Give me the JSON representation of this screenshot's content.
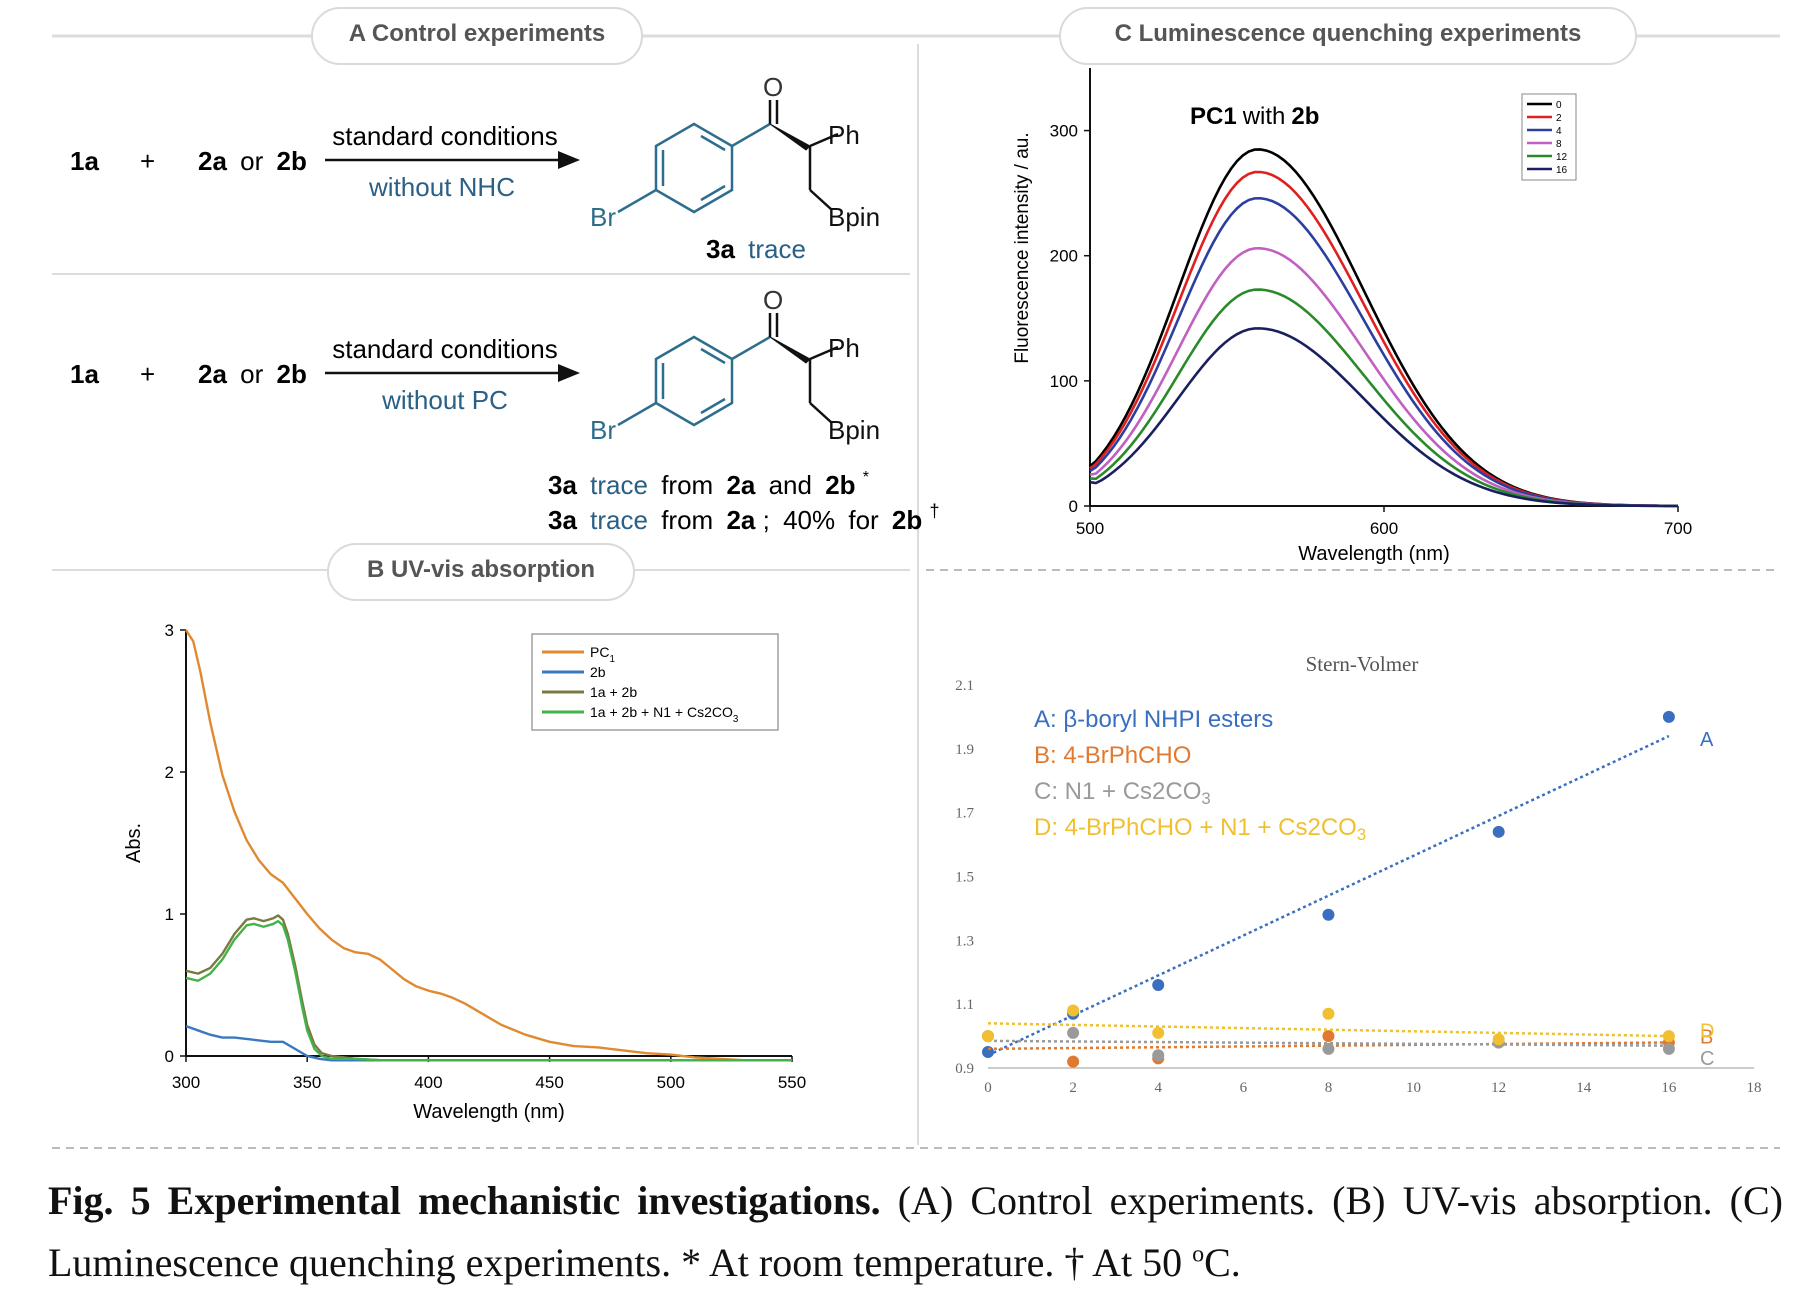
{
  "panels": {
    "A": {
      "header": "A Control experiments",
      "rxn1": {
        "r1": "1a",
        "plus": "+",
        "r2a": "2a",
        "or": "or",
        "r2b": "2b",
        "cond_top": "standard conditions",
        "cond_bottom": "without  NHC",
        "mol": {
          "O": "O",
          "Ph": "Ph",
          "Br": "Br",
          "Bpin": "Bpin"
        },
        "result": [
          {
            "prod": "3a",
            "text": "trace"
          }
        ]
      },
      "rxn2": {
        "r1": "1a",
        "plus": "+",
        "r2a": "2a",
        "or": "or",
        "r2b": "2b",
        "cond_top": "standard conditions",
        "cond_bottom": "without  PC",
        "mol": {
          "O": "O",
          "Ph": "Ph",
          "Br": "Br",
          "Bpin": "Bpin"
        },
        "line1": {
          "prod": "3a",
          "trace": "trace",
          "from": "from",
          "a": "2a",
          "and": "and",
          "b": "2b",
          "mark": "*"
        },
        "line2": {
          "prod": "3a",
          "trace": "trace",
          "from": "from",
          "a": "2a",
          "sep": ";",
          "pct": "40%",
          "for": "for",
          "b": "2b",
          "mark": "†"
        }
      }
    },
    "B": {
      "header": "B UV-vis absorption"
    },
    "C": {
      "header": "C  Luminescence quenching experiments"
    }
  },
  "colors": {
    "blue_text": "#2a5f86",
    "orange": "#e08a30",
    "blue": "#3a78c0",
    "olive": "#7a7a40",
    "green": "#44b24a",
    "gray_line": "#d8d8d8"
  },
  "chart_data": [
    {
      "id": "uv-vis",
      "type": "line",
      "xlabel": "Wavelength (nm)",
      "ylabel": "Abs.",
      "xlim": [
        300,
        550
      ],
      "ylim": [
        0,
        3
      ],
      "xticks": [
        300,
        350,
        400,
        450,
        500,
        550
      ],
      "yticks": [
        0,
        1,
        2,
        3
      ],
      "legend": "top-right",
      "series": [
        {
          "name": "PC1",
          "color": "#e08a30",
          "x": [
            300,
            303,
            306,
            310,
            315,
            320,
            325,
            330,
            335,
            340,
            345,
            350,
            355,
            360,
            365,
            370,
            375,
            380,
            385,
            390,
            395,
            400,
            405,
            410,
            415,
            420,
            425,
            430,
            440,
            450,
            460,
            470,
            480,
            490,
            500,
            510,
            520,
            530,
            540,
            550
          ],
          "y": [
            3.0,
            2.92,
            2.7,
            2.35,
            1.98,
            1.72,
            1.52,
            1.38,
            1.28,
            1.22,
            1.11,
            1.0,
            0.9,
            0.82,
            0.76,
            0.73,
            0.72,
            0.68,
            0.61,
            0.54,
            0.49,
            0.46,
            0.44,
            0.41,
            0.37,
            0.32,
            0.27,
            0.22,
            0.15,
            0.1,
            0.07,
            0.06,
            0.04,
            0.02,
            0.01,
            -0.01,
            -0.02,
            -0.03,
            -0.03,
            -0.03
          ]
        },
        {
          "name": "2b",
          "color": "#3a78c0",
          "x": [
            300,
            305,
            310,
            315,
            320,
            325,
            330,
            335,
            340,
            345,
            350,
            355,
            360,
            370,
            380,
            400,
            450,
            500,
            550
          ],
          "y": [
            0.21,
            0.18,
            0.15,
            0.13,
            0.13,
            0.12,
            0.11,
            0.1,
            0.1,
            0.05,
            0.0,
            -0.02,
            -0.03,
            -0.03,
            -0.03,
            -0.03,
            -0.03,
            -0.03,
            -0.03
          ]
        },
        {
          "name": "1a + 2b",
          "color": "#7a7a40",
          "x": [
            300,
            305,
            310,
            315,
            320,
            325,
            328,
            332,
            336,
            338,
            340,
            342,
            345,
            348,
            350,
            353,
            356,
            360,
            370,
            380,
            400,
            450,
            500,
            550
          ],
          "y": [
            0.6,
            0.58,
            0.62,
            0.72,
            0.86,
            0.96,
            0.97,
            0.95,
            0.97,
            0.99,
            0.96,
            0.86,
            0.64,
            0.38,
            0.22,
            0.08,
            0.02,
            0.0,
            -0.02,
            -0.03,
            -0.03,
            -0.03,
            -0.03,
            -0.03
          ]
        },
        {
          "name": "1a + 2b + N1 + Cs2CO3",
          "color": "#44b24a",
          "x": [
            300,
            305,
            310,
            315,
            320,
            325,
            328,
            332,
            336,
            338,
            340,
            342,
            345,
            348,
            350,
            353,
            356,
            360,
            370,
            380,
            400,
            450,
            500,
            550
          ],
          "y": [
            0.55,
            0.53,
            0.58,
            0.68,
            0.82,
            0.92,
            0.93,
            0.91,
            0.93,
            0.95,
            0.92,
            0.82,
            0.6,
            0.34,
            0.18,
            0.05,
            0.0,
            -0.02,
            -0.02,
            -0.03,
            -0.03,
            -0.03,
            -0.03,
            -0.03
          ]
        }
      ]
    },
    {
      "id": "fluorescence",
      "type": "line",
      "title_bold1": "PC1",
      "title_mid": "with",
      "title_bold2": "2b",
      "xlabel": "Wavelength (nm)",
      "ylabel": "Fluorescence intensity / au.",
      "xlim": [
        500,
        700
      ],
      "ylim": [
        0,
        350
      ],
      "xticks": [
        500,
        600,
        700
      ],
      "yticks": [
        0,
        100,
        200,
        300
      ],
      "legend": "top-right",
      "peak_x": 557,
      "series": [
        {
          "name": "0",
          "color": "#000000",
          "peak": 285,
          "start": 32
        },
        {
          "name": "2",
          "color": "#e02020",
          "peak": 267,
          "start": 30
        },
        {
          "name": "4",
          "color": "#2a3fa0",
          "peak": 246,
          "start": 28
        },
        {
          "name": "8",
          "color": "#c060c0",
          "peak": 206,
          "start": 25
        },
        {
          "name": "12",
          "color": "#2a8a2a",
          "peak": 173,
          "start": 22
        },
        {
          "name": "16",
          "color": "#1a1f60",
          "peak": 142,
          "start": 19
        }
      ]
    },
    {
      "id": "stern-volmer",
      "type": "scatter",
      "title": "Stern-Volmer",
      "xlim": [
        0,
        18
      ],
      "ylim": [
        0.9,
        2.1
      ],
      "xticks": [
        0,
        2,
        4,
        6,
        8,
        10,
        12,
        14,
        16,
        18
      ],
      "yticks": [
        0.9,
        1.1,
        1.3,
        1.5,
        1.7,
        1.9,
        2.1
      ],
      "legend": "top-left",
      "series": [
        {
          "name": "A: β-boryl NHPI esters",
          "end_label": "A",
          "color": "#3a6fc0",
          "x": [
            0,
            2,
            4,
            8,
            12,
            16
          ],
          "y": [
            0.95,
            1.07,
            1.16,
            1.38,
            1.64,
            2.0
          ],
          "fit": [
            0.94,
            1.94
          ]
        },
        {
          "name": "B: 4-BrPhCHO",
          "end_label": "B",
          "color": "#e07a30",
          "x": [
            0,
            2,
            4,
            8,
            12,
            16
          ],
          "y": [
            1.0,
            0.92,
            0.93,
            1.0,
            0.98,
            0.98
          ],
          "fit": [
            0.96,
            0.98
          ]
        },
        {
          "name": "C: N1 + Cs2CO3",
          "end_label": "C",
          "color": "#9a9a9a",
          "x": [
            0,
            2,
            4,
            8,
            12,
            16
          ],
          "y": [
            1.0,
            1.01,
            0.94,
            0.96,
            0.98,
            0.96
          ],
          "fit": [
            0.985,
            0.97
          ]
        },
        {
          "name": "D: 4-BrPhCHO + N1 + Cs2CO3",
          "end_label": "D",
          "color": "#f0c030",
          "x": [
            0,
            2,
            4,
            8,
            12,
            16
          ],
          "y": [
            1.0,
            1.08,
            1.01,
            1.07,
            0.99,
            1.0
          ],
          "fit": [
            1.04,
            1.0
          ]
        }
      ]
    }
  ],
  "caption": {
    "label": "Fig. 5 Experimental mechanistic investigations.",
    "text": " (A) Control experiments. (B) UV-vis absorption. (C) Luminescence quenching experiments. * At room temperature. † At 50 ",
    "deg": "o",
    "unit": "C."
  }
}
